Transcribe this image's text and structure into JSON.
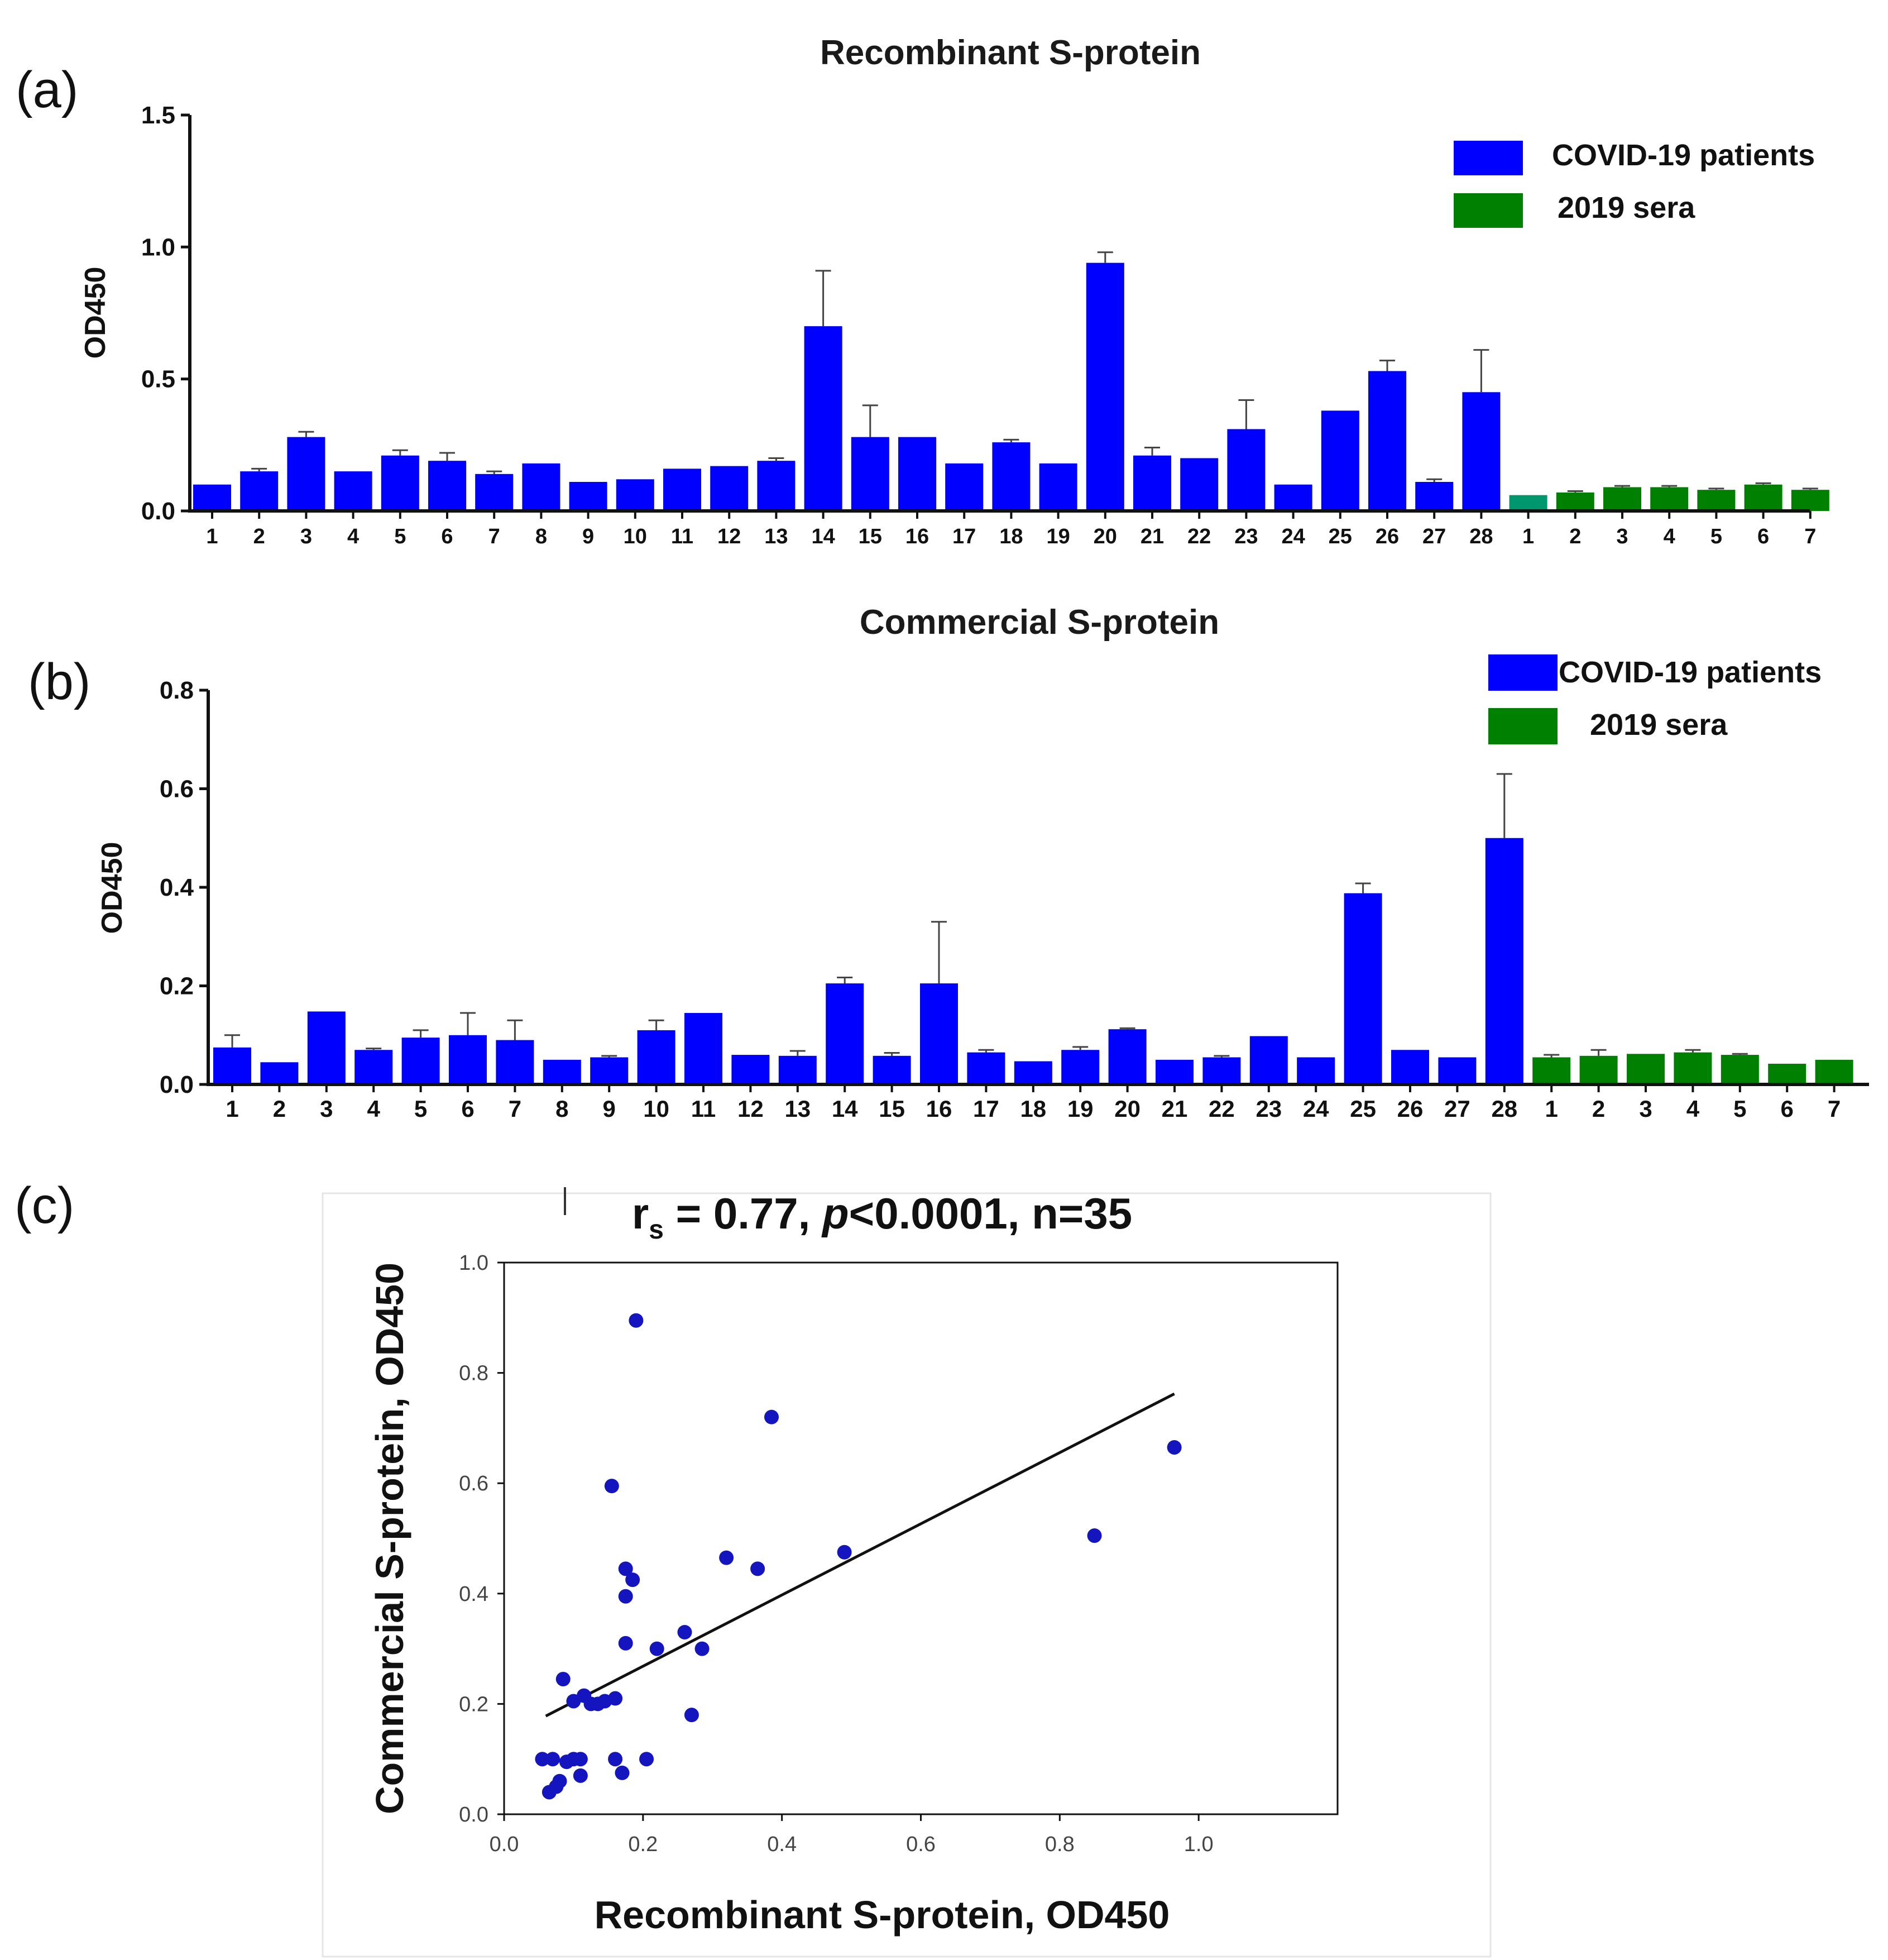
{
  "colors": {
    "patients": "#0000ff",
    "sera": "#008000",
    "sera_first_a": "#00966e",
    "scatter": "#1515c0",
    "fit": "#111111",
    "axis": "#111111"
  },
  "chart_data": [
    {
      "panel": "(a)",
      "type": "bar",
      "title": "Recombinant S-protein",
      "ylabel": "OD450",
      "xlabel": "",
      "ylim": [
        0,
        1.5
      ],
      "yticks": [
        "0.0",
        "0.5",
        "1.0",
        "1.5"
      ],
      "legend": {
        "position": "top-right",
        "entries": [
          "COVID-19 patients",
          "2019 sera"
        ]
      },
      "series": [
        {
          "name": "COVID-19 patients",
          "categories": [
            "1",
            "2",
            "3",
            "4",
            "5",
            "6",
            "7",
            "8",
            "9",
            "10",
            "11",
            "12",
            "13",
            "14",
            "15",
            "16",
            "17",
            "18",
            "19",
            "20",
            "21",
            "22",
            "23",
            "24",
            "25",
            "26",
            "27",
            "28"
          ],
          "values": [
            0.1,
            0.15,
            0.28,
            0.15,
            0.21,
            0.19,
            0.14,
            0.18,
            0.11,
            0.12,
            0.16,
            0.17,
            0.19,
            0.7,
            0.28,
            0.28,
            0.18,
            0.26,
            0.18,
            0.94,
            0.21,
            0.2,
            0.31,
            0.1,
            0.38,
            0.53,
            0.11,
            0.45
          ],
          "errors": [
            0,
            0.01,
            0.02,
            0,
            0.02,
            0.03,
            0.01,
            0,
            0,
            0,
            0,
            0,
            0.01,
            0.21,
            0.12,
            0,
            0,
            0.01,
            0,
            0.04,
            0.03,
            0,
            0.11,
            0,
            0,
            0.04,
            0.01,
            0.16
          ]
        },
        {
          "name": "2019 sera",
          "categories": [
            "1",
            "2",
            "3",
            "4",
            "5",
            "6",
            "7"
          ],
          "values": [
            0.06,
            0.07,
            0.09,
            0.09,
            0.08,
            0.1,
            0.08
          ],
          "errors": [
            0,
            0.005,
            0.005,
            0.005,
            0.005,
            0.005,
            0.005
          ]
        }
      ]
    },
    {
      "panel": "(b)",
      "type": "bar",
      "title": "Commercial S-protein",
      "ylabel": "OD450",
      "xlabel": "",
      "ylim": [
        0,
        0.8
      ],
      "yticks": [
        "0.0",
        "0.2",
        "0.4",
        "0.6",
        "0.8"
      ],
      "legend": {
        "position": "top-right",
        "entries": [
          "COVID-19 patients",
          "2019 sera"
        ]
      },
      "series": [
        {
          "name": "COVID-19 patients",
          "categories": [
            "1",
            "2",
            "3",
            "4",
            "5",
            "6",
            "7",
            "8",
            "9",
            "10",
            "11",
            "12",
            "13",
            "14",
            "15",
            "16",
            "17",
            "18",
            "19",
            "20",
            "21",
            "22",
            "23",
            "24",
            "25",
            "26",
            "27",
            "28"
          ],
          "values": [
            0.075,
            0.045,
            0.148,
            0.07,
            0.095,
            0.1,
            0.09,
            0.05,
            0.055,
            0.11,
            0.145,
            0.06,
            0.058,
            0.205,
            0.058,
            0.205,
            0.065,
            0.047,
            0.07,
            0.112,
            0.05,
            0.055,
            0.098,
            0.055,
            0.388,
            0.07,
            0.055,
            0.5
          ],
          "errors": [
            0.025,
            0,
            0,
            0.003,
            0.015,
            0.045,
            0.04,
            0,
            0.003,
            0.02,
            0,
            0,
            0.01,
            0.012,
            0.006,
            0.125,
            0.005,
            0,
            0.006,
            0.002,
            0,
            0.003,
            0,
            0,
            0.02,
            0,
            0,
            0.13
          ]
        },
        {
          "name": "2019 sera",
          "categories": [
            "1",
            "2",
            "3",
            "4",
            "5",
            "6",
            "7"
          ],
          "values": [
            0.055,
            0.058,
            0.062,
            0.065,
            0.06,
            0.042,
            0.05
          ],
          "errors": [
            0.005,
            0.012,
            0,
            0.005,
            0.002,
            0,
            0
          ]
        }
      ]
    },
    {
      "panel": "(c)",
      "type": "scatter",
      "title_parts": {
        "pre": "r",
        "sub": "s",
        "mid": " = 0.77, ",
        "italic": "p",
        "post": "<0.0001, n=35"
      },
      "xlabel": "Recombinant S-protein, OD450",
      "ylabel": "Commercial S-protein, OD450",
      "xlim": [
        0,
        1.2
      ],
      "ylim": [
        0,
        1.0
      ],
      "xticks": [
        "0.0",
        "0.2",
        "0.4",
        "0.6",
        "0.8",
        "1.0"
      ],
      "yticks": [
        "0.0",
        "0.2",
        "0.4",
        "0.6",
        "0.8",
        "1.0"
      ],
      "fit_line": {
        "x": [
          0.06,
          0.965
        ],
        "y": [
          0.178,
          0.762
        ]
      },
      "x": [
        0.19,
        0.385,
        0.965,
        0.85,
        0.49,
        0.365,
        0.32,
        0.155,
        0.175,
        0.185,
        0.175,
        0.175,
        0.26,
        0.285,
        0.22,
        0.27,
        0.085,
        0.1,
        0.115,
        0.125,
        0.135,
        0.145,
        0.16,
        0.055,
        0.07,
        0.075,
        0.09,
        0.1,
        0.11,
        0.16,
        0.17,
        0.205,
        0.065,
        0.08,
        0.11
      ],
      "y": [
        0.895,
        0.72,
        0.665,
        0.505,
        0.475,
        0.445,
        0.465,
        0.595,
        0.445,
        0.425,
        0.395,
        0.31,
        0.33,
        0.3,
        0.3,
        0.18,
        0.245,
        0.205,
        0.215,
        0.2,
        0.2,
        0.205,
        0.21,
        0.1,
        0.1,
        0.05,
        0.095,
        0.1,
        0.1,
        0.1,
        0.075,
        0.1,
        0.04,
        0.06,
        0.07
      ]
    }
  ]
}
